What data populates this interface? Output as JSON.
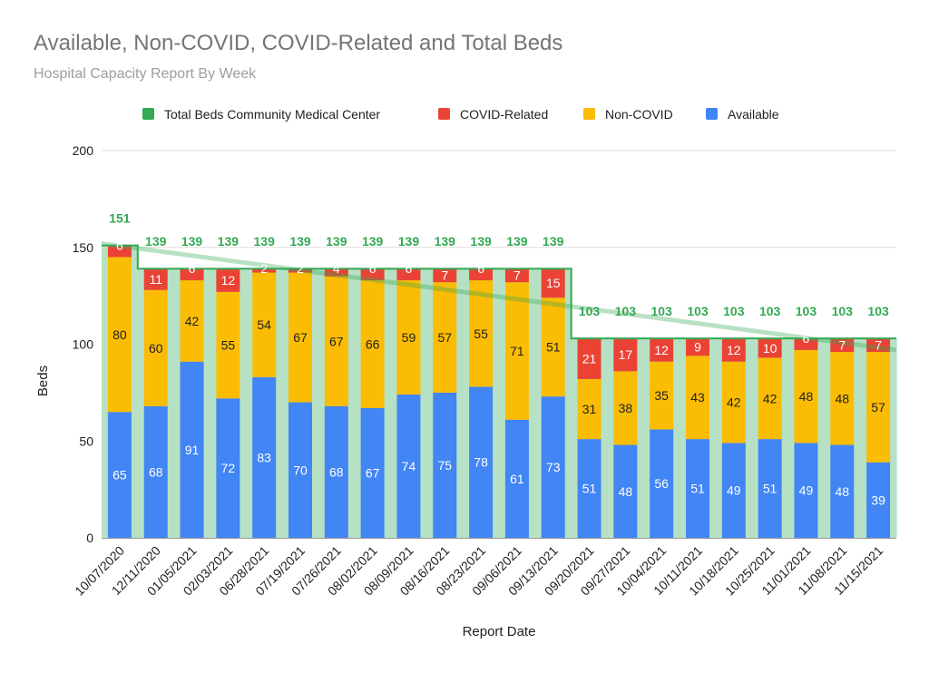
{
  "chart_data": {
    "type": "bar",
    "stacked": true,
    "title": "Available, Non-COVID, COVID-Related and Total Beds",
    "subtitle": "Hospital Capacity Report By Week",
    "xlabel": "Report Date",
    "ylabel": "Beds",
    "ylim": [
      0,
      200
    ],
    "yticks": [
      0,
      50,
      100,
      150,
      200
    ],
    "grid": true,
    "legend_position": "top",
    "categories": [
      "10/07/2020",
      "12/11/2020",
      "01/05/2021",
      "02/03/2021",
      "06/28/2021",
      "07/19/2021",
      "07/26/2021",
      "08/02/2021",
      "08/09/2021",
      "08/16/2021",
      "08/23/2021",
      "09/06/2021",
      "09/13/2021",
      "09/20/2021",
      "09/27/2021",
      "10/04/2021",
      "10/11/2021",
      "10/18/2021",
      "10/25/2021",
      "11/01/2021",
      "11/08/2021",
      "11/15/2021"
    ],
    "series": [
      {
        "name": "Available",
        "color": "#4285f4",
        "values": [
          65,
          68,
          91,
          72,
          83,
          70,
          68,
          67,
          74,
          75,
          78,
          61,
          73,
          51,
          48,
          56,
          51,
          49,
          51,
          49,
          48,
          39
        ]
      },
      {
        "name": "Non-COVID",
        "color": "#fbbc04",
        "values": [
          80,
          60,
          42,
          55,
          54,
          67,
          67,
          66,
          59,
          57,
          55,
          71,
          51,
          31,
          38,
          35,
          43,
          42,
          42,
          48,
          48,
          57
        ]
      },
      {
        "name": "COVID-Related",
        "color": "#ea4335",
        "values": [
          6,
          11,
          6,
          12,
          2,
          2,
          4,
          6,
          6,
          7,
          6,
          7,
          15,
          21,
          17,
          12,
          9,
          12,
          10,
          6,
          7,
          7
        ]
      }
    ],
    "total_series": {
      "name": "Total Beds Community Medical Center",
      "color": "#34a853",
      "type": "step-line",
      "values": [
        151,
        139,
        139,
        139,
        139,
        139,
        139,
        139,
        139,
        139,
        139,
        139,
        139,
        103,
        103,
        103,
        103,
        103,
        103,
        103,
        103,
        103
      ]
    },
    "trendline": {
      "color": "#34a853",
      "from": 152,
      "to": 97
    },
    "legend": [
      "Total Beds Community Medical Center",
      "COVID-Related",
      "Non-COVID",
      "Available"
    ]
  }
}
